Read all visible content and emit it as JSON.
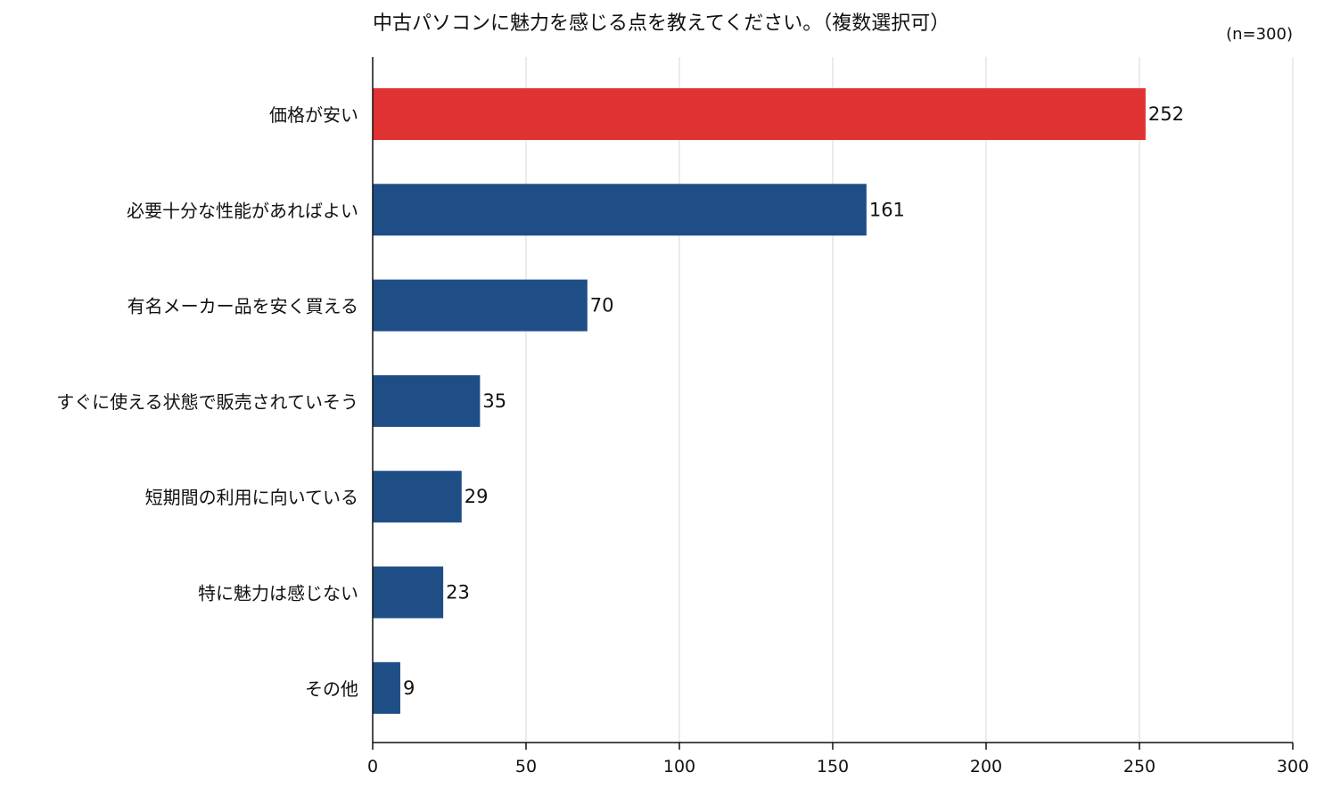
{
  "chart_data": {
    "type": "bar",
    "orientation": "horizontal",
    "title": "中古パソコンに魅力を感じる点を教えてください。（複数選択可）",
    "note": "(n=300)",
    "categories": [
      "価格が安い",
      "必要十分な性能があればよい",
      "有名メーカー品を安く買える",
      "すぐに使える状態で販売されていそう",
      "短期間の利用に向いている",
      "特に魅力は感じない",
      "その他"
    ],
    "values": [
      252,
      161,
      70,
      35,
      29,
      23,
      9
    ],
    "value_labels": [
      "252",
      "161",
      "70",
      "35",
      "29",
      "23",
      "9"
    ],
    "highlight_index": 0,
    "xlim": [
      0,
      300
    ],
    "xticks": [
      0,
      50,
      100,
      150,
      200,
      250,
      300
    ],
    "xtick_labels": [
      "0",
      "50",
      "100",
      "150",
      "200",
      "250",
      "300"
    ],
    "grid": true,
    "colors": {
      "bar": "#1f4e87",
      "highlight": "#e03232",
      "grid": "#dedede",
      "axis": "#111111"
    }
  }
}
